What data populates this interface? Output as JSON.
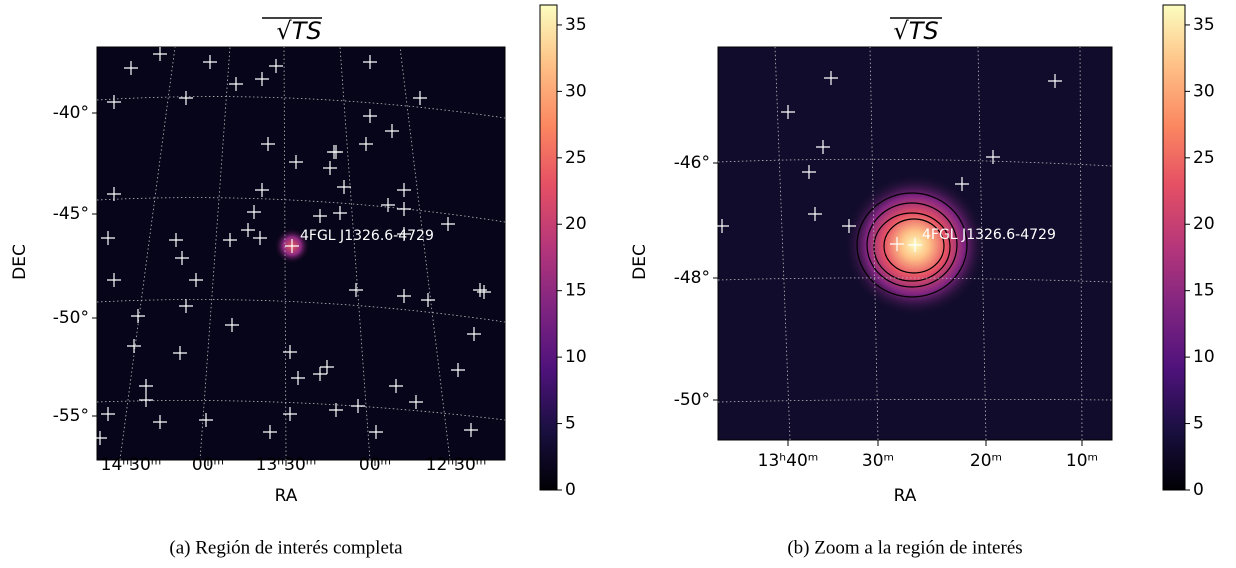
{
  "panels": [
    {
      "title": "√TS",
      "xlabel": "RA",
      "ylabel": "DEC",
      "annotation": "4FGL J1326.6-4729",
      "caption": "(a) Región de interés completa",
      "xticks": [
        "14ʰ30ᵐ",
        "00ᵐ",
        "13ʰ30ᵐ",
        "00ᵐ",
        "12ʰ30ᵐ"
      ],
      "yticks": [
        "-40°",
        "-45°",
        "-50°",
        "-55°"
      ],
      "colorbar": {
        "lim": [
          0,
          36.5
        ],
        "ticks": [
          0,
          5,
          10,
          15,
          20,
          25,
          30,
          35
        ]
      }
    },
    {
      "title": "√TS",
      "xlabel": "RA",
      "ylabel": "DEC",
      "annotation": "4FGL J1326.6-4729",
      "caption": "(b) Zoom a la región de interés",
      "xticks": [
        "13ʰ40ᵐ",
        "30ᵐ",
        "20ᵐ",
        "10ᵐ"
      ],
      "yticks": [
        "-46°",
        "-48°",
        "-50°"
      ],
      "colorbar": {
        "lim": [
          0,
          36.5
        ],
        "ticks": [
          0,
          5,
          10,
          15,
          20,
          25,
          30,
          35
        ]
      }
    }
  ]
}
